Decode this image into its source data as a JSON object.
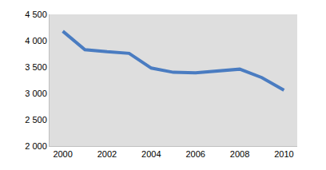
{
  "chart_data": {
    "type": "line",
    "x": [
      2000,
      2001,
      2002,
      2003,
      2004,
      2005,
      2006,
      2007,
      2008,
      2009,
      2010
    ],
    "series": [
      {
        "color": "#4a7cc1",
        "values": [
          4180,
          3830,
          3790,
          3760,
          3480,
          3400,
          3390,
          3420,
          3460,
          3300,
          3060
        ]
      }
    ],
    "xlim": [
      1999.4,
      2010.6
    ],
    "xticks": [
      2000,
      2002,
      2004,
      2006,
      2008,
      2010
    ],
    "ylim": [
      2000,
      4500
    ],
    "yticks": [
      {
        "value": 2000,
        "label": "2 000"
      },
      {
        "value": 2500,
        "label": "2 500"
      },
      {
        "value": 3000,
        "label": "3 000"
      },
      {
        "value": 3500,
        "label": "3 500"
      },
      {
        "value": 4000,
        "label": "4 000"
      },
      {
        "value": 4500,
        "label": "4 500"
      }
    ],
    "grid": false
  }
}
